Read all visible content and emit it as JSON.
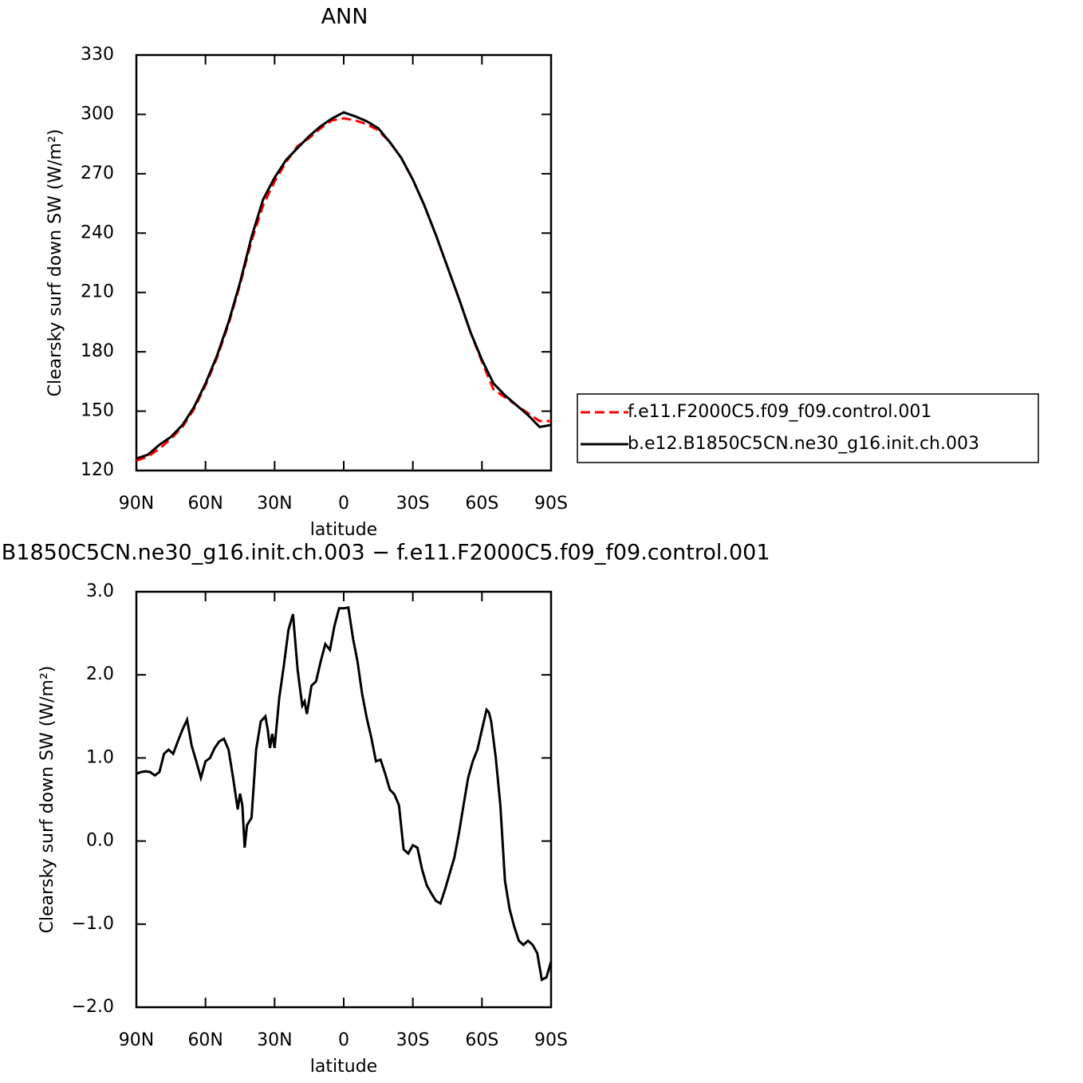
{
  "chart_data": [
    {
      "type": "line",
      "title": "ANN",
      "xlabel": "latitude",
      "ylabel": "Clearsky surf down SW (W/m²)",
      "xlim": [
        90,
        -90
      ],
      "xticks": [
        {
          "value": 90,
          "label": "90N"
        },
        {
          "value": 60,
          "label": "60N"
        },
        {
          "value": 30,
          "label": "30N"
        },
        0,
        {
          "value": -30,
          "label": "30S"
        },
        {
          "value": -60,
          "label": "60S"
        },
        {
          "value": -90,
          "label": "90S"
        }
      ],
      "ylim": [
        120,
        330
      ],
      "yticks": [
        120,
        150,
        180,
        210,
        240,
        270,
        300,
        330
      ],
      "legend": "outside right",
      "x": [
        90,
        85,
        80,
        75,
        70,
        65,
        60,
        55,
        50,
        45,
        40,
        35,
        30,
        25,
        20,
        15,
        10,
        5,
        0,
        -5,
        -10,
        -15,
        -20,
        -25,
        -30,
        -35,
        -40,
        -45,
        -50,
        -55,
        -60,
        -65,
        -70,
        -75,
        -80,
        -85,
        -90
      ],
      "series": [
        {
          "name": "f.e11.F2000C5.f09_f09.control.001",
          "color": "#ff0000",
          "dash": true,
          "values": [
            125,
            127,
            131,
            136,
            142,
            151,
            163,
            177,
            194,
            214,
            236,
            254,
            266,
            276,
            284,
            288,
            293,
            297,
            298,
            297,
            295,
            292,
            286,
            278,
            267,
            254,
            239,
            223,
            207,
            190,
            175,
            161,
            157,
            153,
            149,
            145,
            145
          ]
        },
        {
          "name": "b.e12.B1850C5CN.ne30_g16.init.ch.003",
          "color": "#000000",
          "dash": false,
          "values": [
            126,
            128,
            133,
            137,
            143,
            152,
            164,
            178,
            195,
            215,
            238,
            257,
            268,
            277,
            283,
            289,
            294,
            298,
            301,
            299,
            296.5,
            293,
            286,
            278,
            267,
            254,
            239,
            223,
            207,
            190,
            176,
            164,
            158,
            153,
            148,
            142,
            143
          ]
        }
      ]
    },
    {
      "type": "line",
      "title": "b.e12.B1850C5CN.ne30_g16.init.ch.003 − f.e11.F2000C5.f09_f09.control.001",
      "xlabel": "latitude",
      "ylabel": "Clearsky surf down SW (W/m²)",
      "xlim": [
        90,
        -90
      ],
      "xticks": [
        {
          "value": 90,
          "label": "90N"
        },
        {
          "value": 60,
          "label": "60N"
        },
        {
          "value": 30,
          "label": "30N"
        },
        0,
        {
          "value": -30,
          "label": "30S"
        },
        {
          "value": -60,
          "label": "60S"
        },
        {
          "value": -90,
          "label": "90S"
        }
      ],
      "ylim": [
        -2,
        3
      ],
      "yticks": [
        {
          "value": -2,
          "label": "−2.0"
        },
        {
          "value": -1,
          "label": "−1.0"
        },
        {
          "value": 0,
          "label": "0.0"
        },
        {
          "value": 1,
          "label": "1.0"
        },
        {
          "value": 2,
          "label": "2.0"
        },
        {
          "value": 3,
          "label": "3.0"
        }
      ],
      "x": [
        90,
        88,
        86,
        84,
        82,
        80,
        78,
        76,
        74,
        72,
        70,
        68,
        66,
        64,
        62,
        60,
        58,
        56,
        54,
        52,
        50,
        48,
        46,
        45,
        44,
        43,
        42,
        40,
        38,
        36,
        34,
        33,
        32,
        31,
        30,
        28,
        26,
        24,
        22,
        20,
        18,
        17,
        16,
        14,
        12,
        10,
        8,
        6,
        4,
        2,
        0,
        -2,
        -4,
        -6,
        -8,
        -10,
        -12,
        -14,
        -16,
        -18,
        -20,
        -22,
        -24,
        -26,
        -28,
        -30,
        -32,
        -34,
        -36,
        -38,
        -40,
        -42,
        -44,
        -46,
        -48,
        -50,
        -52,
        -54,
        -56,
        -58,
        -60,
        -62,
        -63,
        -64,
        -66,
        -68,
        -70,
        -72,
        -74,
        -76,
        -78,
        -80,
        -82,
        -84,
        -86,
        -88,
        -90
      ],
      "series": [
        {
          "color": "#000000",
          "dash": false,
          "values": [
            0.81,
            0.83,
            0.84,
            0.83,
            0.79,
            0.83,
            1.05,
            1.1,
            1.05,
            1.2,
            1.34,
            1.46,
            1.15,
            0.96,
            0.76,
            0.96,
            1.0,
            1.12,
            1.2,
            1.23,
            1.1,
            0.76,
            0.38,
            0.57,
            0.43,
            -0.08,
            0.19,
            0.28,
            1.1,
            1.44,
            1.5,
            1.34,
            1.12,
            1.29,
            1.12,
            1.72,
            2.11,
            2.54,
            2.73,
            2.06,
            1.63,
            1.68,
            1.53,
            1.87,
            1.92,
            2.16,
            2.37,
            2.3,
            2.59,
            2.8,
            2.8,
            2.81,
            2.44,
            2.16,
            1.77,
            1.48,
            1.24,
            0.96,
            0.98,
            0.81,
            0.62,
            0.56,
            0.43,
            -0.1,
            -0.15,
            -0.05,
            -0.08,
            -0.34,
            -0.53,
            -0.63,
            -0.72,
            -0.75,
            -0.58,
            -0.39,
            -0.2,
            0.09,
            0.43,
            0.76,
            0.96,
            1.1,
            1.34,
            1.58,
            1.55,
            1.44,
            1.0,
            0.43,
            -0.48,
            -0.82,
            -1.03,
            -1.2,
            -1.25,
            -1.2,
            -1.25,
            -1.35,
            -1.67,
            -1.64,
            -1.45
          ]
        }
      ]
    }
  ]
}
